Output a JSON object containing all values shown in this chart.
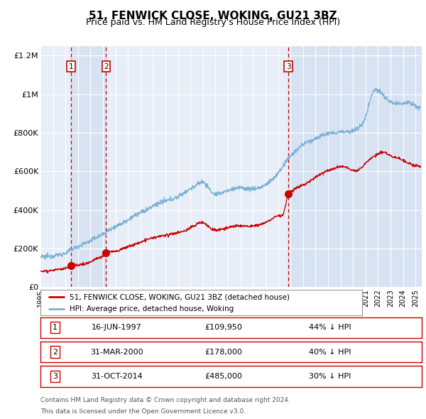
{
  "title": "51, FENWICK CLOSE, WOKING, GU21 3BZ",
  "subtitle": "Price paid vs. HM Land Registry's House Price Index (HPI)",
  "title_fontsize": 11,
  "subtitle_fontsize": 9,
  "background_color": "#ffffff",
  "plot_bg_color": "#e8eef8",
  "grid_color": "#ffffff",
  "sale_color": "#cc0000",
  "hpi_color": "#7ab0d4",
  "sale_label": "51, FENWICK CLOSE, WOKING, GU21 3BZ (detached house)",
  "hpi_label": "HPI: Average price, detached house, Woking",
  "transactions": [
    {
      "num": 1,
      "date_label": "16-JUN-1997",
      "date_x": 1997.46,
      "price": 109950,
      "pct": "44% ↓ HPI"
    },
    {
      "num": 2,
      "date_label": "31-MAR-2000",
      "date_x": 2000.25,
      "price": 178000,
      "pct": "40% ↓ HPI"
    },
    {
      "num": 3,
      "date_label": "31-OCT-2014",
      "date_x": 2014.83,
      "price": 485000,
      "pct": "30% ↓ HPI"
    }
  ],
  "vline_color": "#cc0000",
  "shade_color": "#d0dff0",
  "shade_alpha": 0.7,
  "ylim": [
    0,
    1250000
  ],
  "xlim": [
    1995.0,
    2025.5
  ],
  "yticks": [
    0,
    200000,
    400000,
    600000,
    800000,
    1000000,
    1200000
  ],
  "ytick_labels": [
    "£0",
    "£200K",
    "£400K",
    "£600K",
    "£800K",
    "£1M",
    "£1.2M"
  ],
  "xticks": [
    1995,
    1996,
    1997,
    1998,
    1999,
    2000,
    2001,
    2002,
    2003,
    2004,
    2005,
    2006,
    2007,
    2008,
    2009,
    2010,
    2011,
    2012,
    2013,
    2014,
    2015,
    2016,
    2017,
    2018,
    2019,
    2020,
    2021,
    2022,
    2023,
    2024,
    2025
  ],
  "footer_line1": "Contains HM Land Registry data © Crown copyright and database right 2024.",
  "footer_line2": "This data is licensed under the Open Government Licence v3.0.",
  "marker_size": 7
}
